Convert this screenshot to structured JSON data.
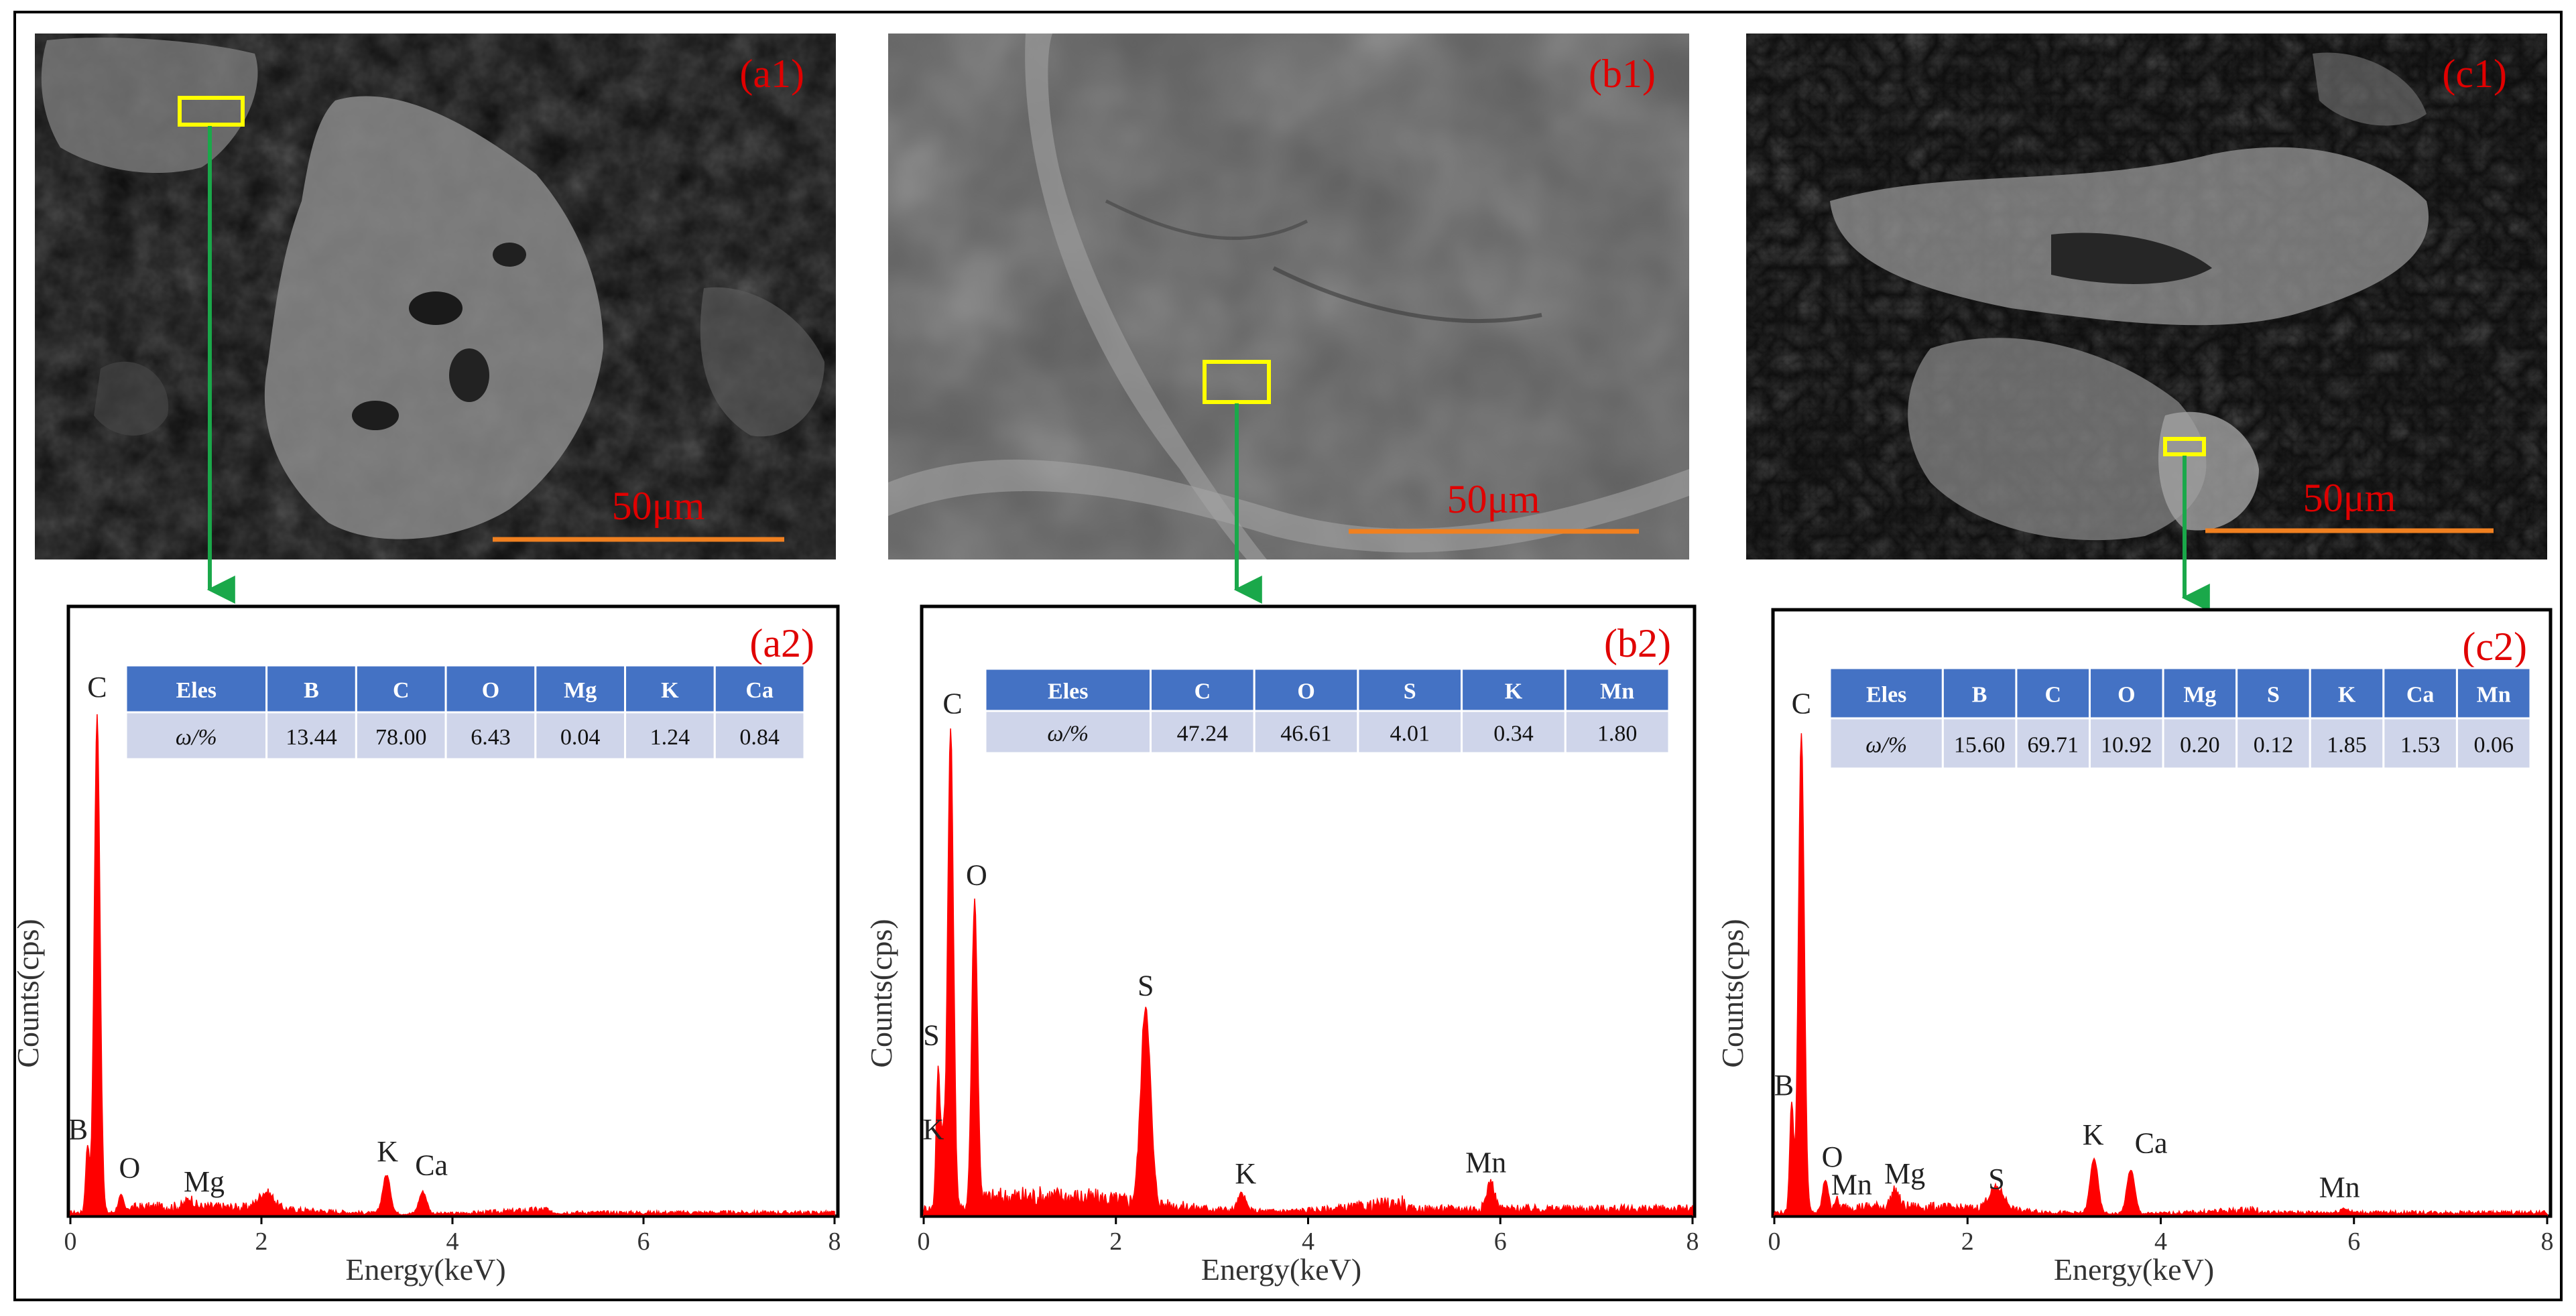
{
  "sem_panels": [
    {
      "label": "(a1)",
      "scale_bar": "50μm"
    },
    {
      "label": "(b1)",
      "scale_bar": "50μm"
    },
    {
      "label": "(c1)",
      "scale_bar": "50μm"
    }
  ],
  "colors": {
    "spectrum": "#ff0000",
    "label_red": "#e00000",
    "scale_bar": "#f08020",
    "highlight_box": "#ffff00",
    "arrow": "#1aa84a",
    "table_header": "#4472c4",
    "table_row": "#cfd5ea"
  },
  "chart_data": [
    {
      "type": "area",
      "label": "(a2)",
      "xlabel": "Energy(keV)",
      "ylabel": "Counts(cps)",
      "xlim": [
        0,
        8
      ],
      "ylim": [
        0,
        1
      ],
      "xticks": [
        0,
        2,
        4,
        6,
        8
      ],
      "noise": 0.012,
      "peaks": [
        {
          "el": "B",
          "x": 0.18,
          "h": 0.12,
          "w": 0.02
        },
        {
          "el": "C",
          "x": 0.28,
          "h": 0.9,
          "w": 0.03
        },
        {
          "el": "O",
          "x": 0.53,
          "h": 0.03,
          "w": 0.03
        },
        {
          "el": "Mg",
          "x": 1.25,
          "h": 0.015,
          "w": 0.04
        },
        {
          "el": "",
          "x": 2.05,
          "h": 0.03,
          "w": 0.08
        },
        {
          "el": "K",
          "x": 3.31,
          "h": 0.07,
          "w": 0.04
        },
        {
          "el": "Ca",
          "x": 3.69,
          "h": 0.04,
          "w": 0.04
        }
      ],
      "peak_labels": [
        {
          "text": "C",
          "x": 0.28,
          "y": 0.93
        },
        {
          "text": "B",
          "x": 0.08,
          "y": 0.13
        },
        {
          "text": "O",
          "x": 0.62,
          "y": 0.06
        },
        {
          "text": "Mg",
          "x": 1.4,
          "y": 0.035
        },
        {
          "text": "K",
          "x": 3.32,
          "y": 0.09
        },
        {
          "text": "Ca",
          "x": 3.78,
          "y": 0.065
        }
      ],
      "table": {
        "headers": [
          "Eles",
          "B",
          "C",
          "O",
          "Mg",
          "K",
          "Ca"
        ],
        "row": [
          "ω/%",
          "13.44",
          "78.00",
          "6.43",
          "0.04",
          "1.24",
          "0.84"
        ]
      }
    },
    {
      "type": "area",
      "label": "(b2)",
      "xlabel": "Energy(keV)",
      "ylabel": "Counts(cps)",
      "xlim": [
        0,
        8
      ],
      "ylim": [
        0,
        1
      ],
      "xticks": [
        0,
        2,
        4,
        6,
        8
      ],
      "noise": 0.025,
      "peaks": [
        {
          "el": "S",
          "x": 0.15,
          "h": 0.25,
          "w": 0.02
        },
        {
          "el": "K",
          "x": 0.2,
          "h": 0.12,
          "w": 0.02
        },
        {
          "el": "C",
          "x": 0.28,
          "h": 0.87,
          "w": 0.03
        },
        {
          "el": "O",
          "x": 0.53,
          "h": 0.56,
          "w": 0.03
        },
        {
          "el": "S",
          "x": 2.31,
          "h": 0.36,
          "w": 0.05
        },
        {
          "el": "K",
          "x": 3.31,
          "h": 0.03,
          "w": 0.04
        },
        {
          "el": "Mn",
          "x": 5.9,
          "h": 0.05,
          "w": 0.04
        }
      ],
      "peak_labels": [
        {
          "text": "C",
          "x": 0.3,
          "y": 0.9
        },
        {
          "text": "O",
          "x": 0.55,
          "y": 0.59
        },
        {
          "text": "S",
          "x": 0.08,
          "y": 0.3
        },
        {
          "text": "K",
          "x": 0.1,
          "y": 0.13
        },
        {
          "text": "S",
          "x": 2.31,
          "y": 0.39
        },
        {
          "text": "K",
          "x": 3.35,
          "y": 0.05
        },
        {
          "text": "Mn",
          "x": 5.85,
          "y": 0.07
        }
      ],
      "table": {
        "headers": [
          "Eles",
          "C",
          "O",
          "S",
          "K",
          "Mn"
        ],
        "row": [
          "ω/%",
          "47.24",
          "46.61",
          "4.01",
          "0.34",
          "1.80"
        ]
      }
    },
    {
      "type": "area",
      "label": "(c2)",
      "xlabel": "Energy(keV)",
      "ylabel": "Counts(cps)",
      "xlim": [
        0,
        8
      ],
      "ylim": [
        0,
        1
      ],
      "xticks": [
        0,
        2,
        4,
        6,
        8
      ],
      "noise": 0.012,
      "peaks": [
        {
          "el": "B",
          "x": 0.18,
          "h": 0.2,
          "w": 0.02
        },
        {
          "el": "C",
          "x": 0.28,
          "h": 0.87,
          "w": 0.03
        },
        {
          "el": "O",
          "x": 0.53,
          "h": 0.06,
          "w": 0.03
        },
        {
          "el": "Mn",
          "x": 0.64,
          "h": 0.015,
          "w": 0.02
        },
        {
          "el": "Mg",
          "x": 1.25,
          "h": 0.03,
          "w": 0.04
        },
        {
          "el": "S",
          "x": 2.3,
          "h": 0.04,
          "w": 0.08
        },
        {
          "el": "K",
          "x": 3.31,
          "h": 0.1,
          "w": 0.04
        },
        {
          "el": "Ca",
          "x": 3.69,
          "h": 0.08,
          "w": 0.04
        },
        {
          "el": "Mn",
          "x": 5.9,
          "h": 0.008,
          "w": 0.04
        }
      ],
      "peak_labels": [
        {
          "text": "C",
          "x": 0.28,
          "y": 0.9
        },
        {
          "text": "B",
          "x": 0.1,
          "y": 0.21
        },
        {
          "text": "O",
          "x": 0.6,
          "y": 0.08
        },
        {
          "text": "Mn",
          "x": 0.8,
          "y": 0.03
        },
        {
          "text": "Mg",
          "x": 1.35,
          "y": 0.05
        },
        {
          "text": "S",
          "x": 2.3,
          "y": 0.04
        },
        {
          "text": "K",
          "x": 3.3,
          "y": 0.12
        },
        {
          "text": "Ca",
          "x": 3.9,
          "y": 0.105
        },
        {
          "text": "Mn",
          "x": 5.85,
          "y": 0.025
        }
      ],
      "table": {
        "headers": [
          "Eles",
          "B",
          "C",
          "O",
          "Mg",
          "S",
          "K",
          "Ca",
          "Mn"
        ],
        "row": [
          "ω/%",
          "15.60",
          "69.71",
          "10.92",
          "0.20",
          "0.12",
          "1.85",
          "1.53",
          "0.06"
        ]
      }
    }
  ]
}
